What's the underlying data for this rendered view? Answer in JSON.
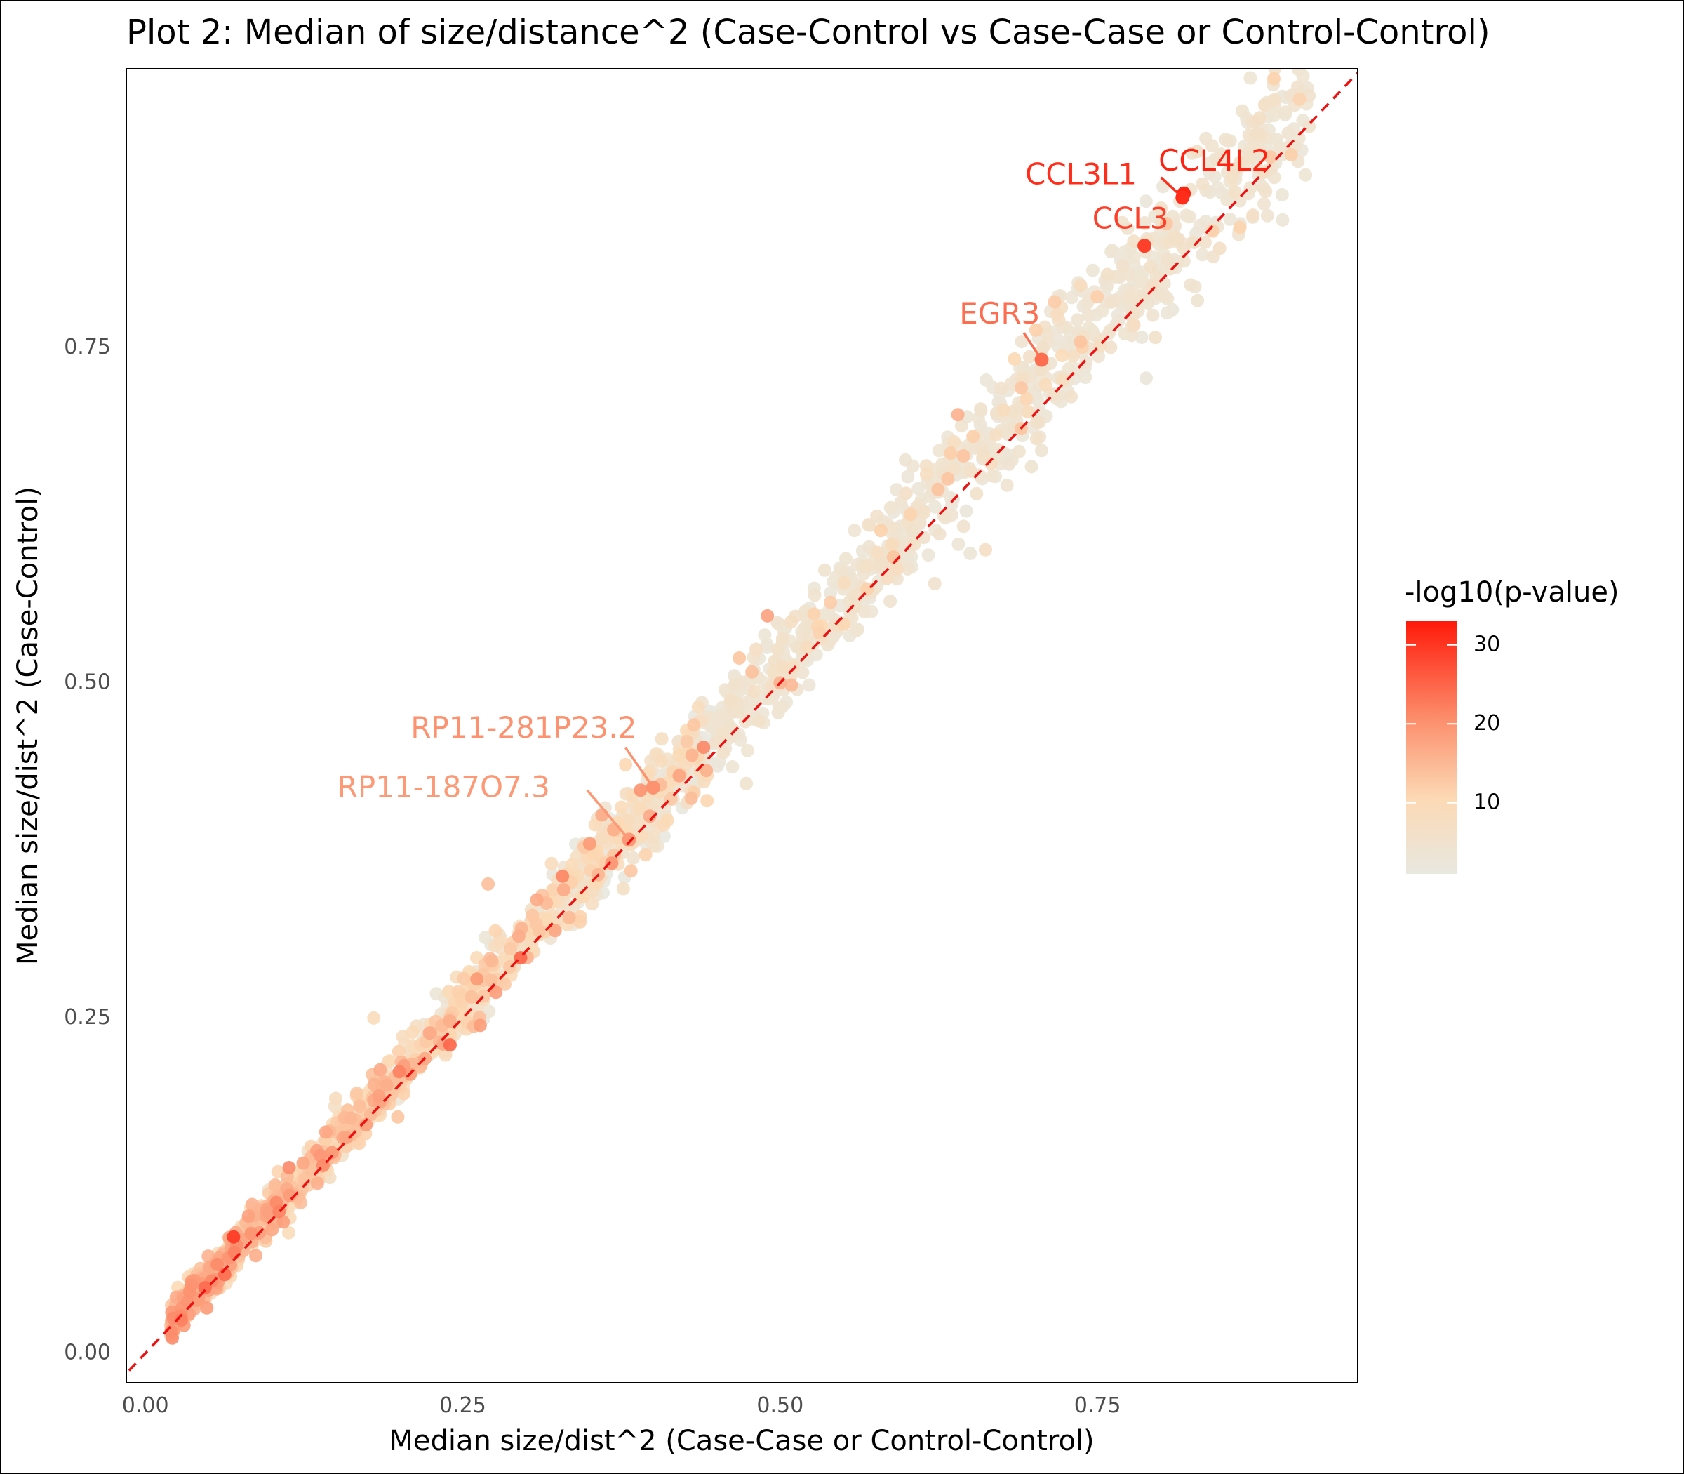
{
  "chart_data": {
    "type": "scatter",
    "title": "Plot 2: Median of size/distance^2 (Case-Control vs Case-Case or Control-Control)",
    "xlabel": "Median size/dist^2 (Case-Case or Control-Control)",
    "ylabel": "Median size/dist^2 (Case-Control)",
    "xlim": [
      -0.015,
      0.955
    ],
    "ylim": [
      -0.022,
      0.958
    ],
    "x_ticks": [
      0.0,
      0.25,
      0.5,
      0.75
    ],
    "x_tick_labels": [
      "0.00",
      "0.25",
      "0.50",
      "0.75"
    ],
    "y_ticks": [
      0.0,
      0.25,
      0.5,
      0.75
    ],
    "y_tick_labels": [
      "0.00",
      "0.25",
      "0.50",
      "0.75"
    ],
    "grid": false,
    "reference_line": {
      "type": "identity",
      "style": "dashed",
      "color": "#ee1111"
    },
    "legend": {
      "title": "-log10(p-value)",
      "position": "right",
      "ticks": [
        10,
        20,
        30
      ],
      "tick_labels": [
        "10",
        "20",
        "30"
      ],
      "range": [
        1,
        33
      ],
      "colors": {
        "low": "#e8e8e0",
        "mid1": "#fcd9b4",
        "mid2": "#fc8c6a",
        "high": "#ff1a0a"
      }
    },
    "highlighted_points": [
      {
        "label": "CCL4L2",
        "x": 0.818,
        "y": 0.865,
        "p": 32,
        "label_x": 0.842,
        "label_y": 0.888
      },
      {
        "label": "CCL3L1",
        "x": 0.817,
        "y": 0.862,
        "p": 31,
        "label_x": 0.737,
        "label_y": 0.878
      },
      {
        "label": "CCL3",
        "x": 0.787,
        "y": 0.826,
        "p": 29,
        "label_x": 0.776,
        "label_y": 0.845
      },
      {
        "label": "EGR3",
        "x": 0.706,
        "y": 0.741,
        "p": 24,
        "label_x": 0.673,
        "label_y": 0.774
      },
      {
        "label": "RP11-281P23.2",
        "x": 0.4,
        "y": 0.422,
        "p": 20,
        "label_x": 0.298,
        "label_y": 0.465
      },
      {
        "label": "RP11-187O7.3",
        "x": 0.381,
        "y": 0.383,
        "p": 19,
        "label_x": 0.235,
        "label_y": 0.421
      }
    ],
    "background_points": {
      "count": 2000,
      "distribution": "scatter along the identity line; spread grows with x; p-values highest near x < 0.45",
      "x_range": [
        0.02,
        0.92
      ],
      "outliers": [
        {
          "x": 0.49,
          "y": 0.55,
          "p": 18
        },
        {
          "x": 0.27,
          "y": 0.35,
          "p": 14
        },
        {
          "x": 0.64,
          "y": 0.7,
          "p": 16
        },
        {
          "x": 0.69,
          "y": 0.72,
          "p": 13
        },
        {
          "x": 0.18,
          "y": 0.25,
          "p": 9
        },
        {
          "x": 0.15,
          "y": 0.19,
          "p": 8
        },
        {
          "x": 0.55,
          "y": 0.57,
          "p": 4
        },
        {
          "x": 0.5,
          "y": 0.5,
          "p": 16
        },
        {
          "x": 0.24,
          "y": 0.23,
          "p": 25
        },
        {
          "x": 0.2,
          "y": 0.21,
          "p": 22
        },
        {
          "x": 0.14,
          "y": 0.14,
          "p": 21
        },
        {
          "x": 0.35,
          "y": 0.38,
          "p": 19
        },
        {
          "x": 0.39,
          "y": 0.42,
          "p": 20
        },
        {
          "x": 0.09,
          "y": 0.09,
          "p": 18
        }
      ]
    }
  }
}
